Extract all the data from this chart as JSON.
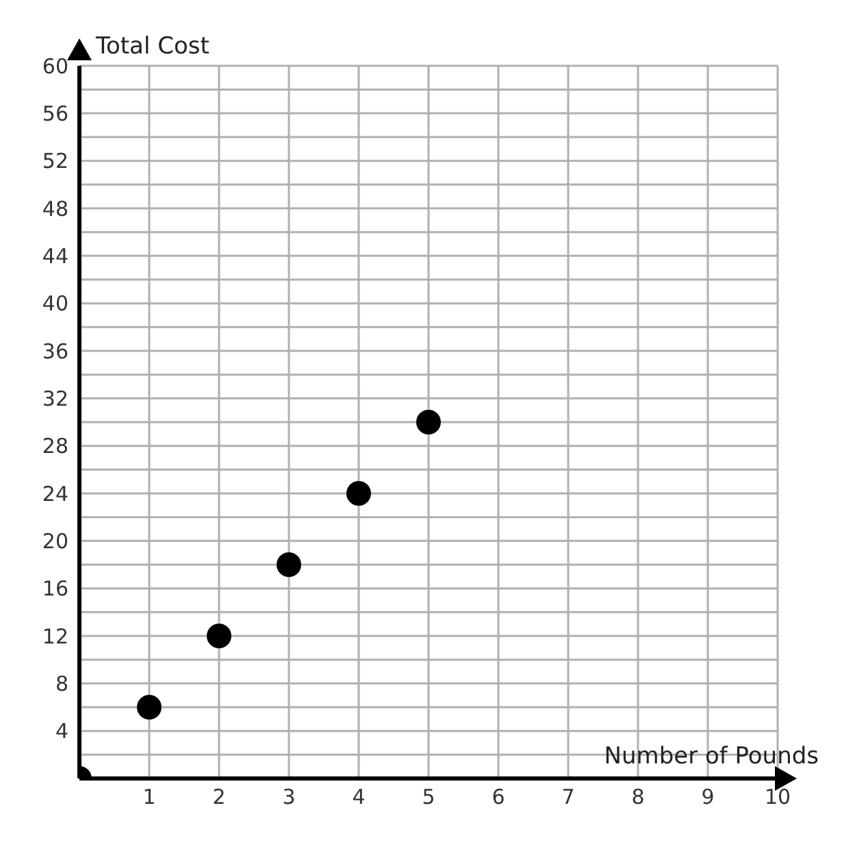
{
  "chart_data": {
    "type": "scatter",
    "xlabel": "Number of Pounds",
    "ylabel": "Total Cost",
    "x": [
      0,
      1,
      2,
      3,
      4,
      5
    ],
    "series": [
      {
        "color": "#000000",
        "values": [
          0,
          6,
          12,
          18,
          24,
          30
        ]
      }
    ],
    "xlim": [
      0,
      10
    ],
    "xticks": [
      1,
      2,
      3,
      4,
      5,
      6,
      7,
      8,
      9,
      10
    ],
    "ylim": [
      0,
      60
    ],
    "yticks": [
      {
        "value": 2,
        "label": null
      },
      4,
      {
        "value": 6,
        "label": null
      },
      8,
      {
        "value": 10,
        "label": null
      },
      12,
      {
        "value": 14,
        "label": null
      },
      16,
      {
        "value": 18,
        "label": null
      },
      20,
      {
        "value": 22,
        "label": null
      },
      24,
      {
        "value": 26,
        "label": null
      },
      28,
      {
        "value": 30,
        "label": null
      },
      32,
      {
        "value": 34,
        "label": null
      },
      36,
      {
        "value": 38,
        "label": null
      },
      40,
      {
        "value": 42,
        "label": null
      },
      44,
      {
        "value": 46,
        "label": null
      },
      48,
      {
        "value": 50,
        "label": null
      },
      52,
      {
        "value": 54,
        "label": null
      },
      56,
      {
        "value": 58,
        "label": null
      },
      60
    ],
    "grid": true,
    "marker": "circle",
    "legend": false
  }
}
